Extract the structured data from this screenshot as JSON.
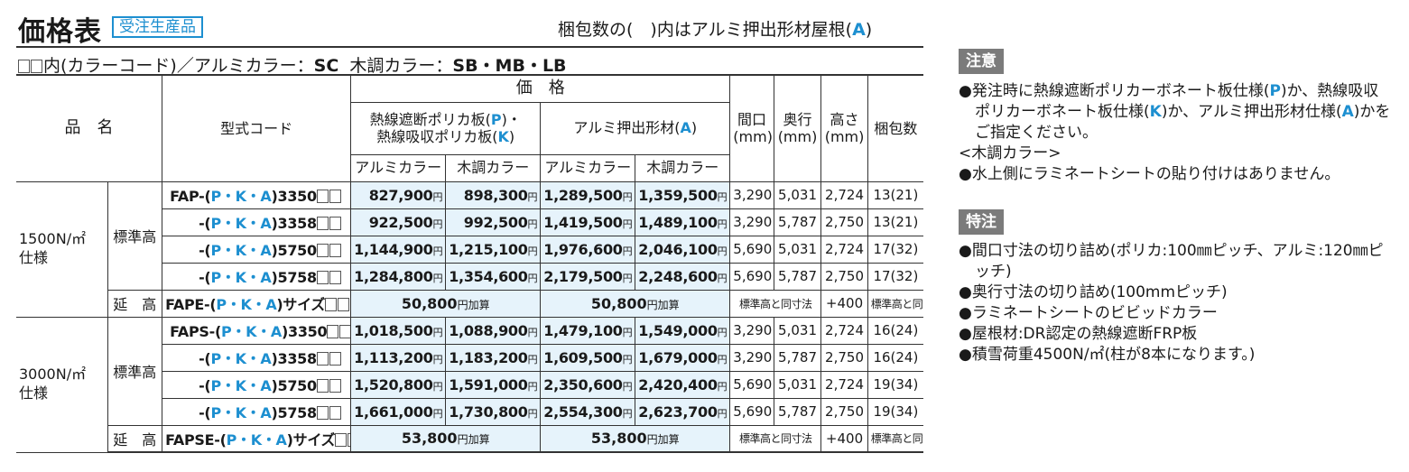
{
  "header": {
    "title": "価格表",
    "badge": "受注生産品",
    "pack_note_pre": "梱包数の(　)内はアルミ押出形材屋根(",
    "pack_note_letter": "A",
    "pack_note_post": ")",
    "color_note_pre": "内(カラーコード)／アルミカラー：",
    "color_alumi": "SC",
    "color_wood_label": "木調カラー：",
    "color_wood": "SB・MB・LB"
  },
  "table": {
    "headers": {
      "product_name": "品　名",
      "type_code": "型式コード",
      "price": "価　格",
      "poly_line1_pre": "熱線遮断ポリカ板(",
      "poly_line1_letter": "P",
      "poly_line1_post": ")・",
      "poly_line2_pre": "熱線吸収ポリカ板(",
      "poly_line2_letter": "K",
      "poly_line2_post": ")",
      "alumi_pre": "アルミ押出形材(",
      "alumi_letter": "A",
      "alumi_post": ")",
      "alumi_color": "アルミカラー",
      "wood_color": "木調カラー",
      "width": "間口",
      "depth": "奥行",
      "height": "高さ",
      "unit": "(mm)",
      "packages": "梱包数"
    },
    "groups": [
      {
        "load_line1": "1500N/㎡",
        "load_line2": "仕様",
        "standard_label": "標準高",
        "rows": [
          {
            "prefix": "FAP-(",
            "suffix": ")3350",
            "poly_alumi": "827,900",
            "poly_wood": "898,300",
            "al_alumi": "1,289,500",
            "al_wood": "1,359,500",
            "width": "3,290",
            "depth": "5,031",
            "height": "2,724",
            "packages": "13(21)"
          },
          {
            "prefix": "-(",
            "suffix": ")3358",
            "poly_alumi": "922,500",
            "poly_wood": "992,500",
            "al_alumi": "1,419,500",
            "al_wood": "1,489,100",
            "width": "3,290",
            "depth": "5,787",
            "height": "2,750",
            "packages": "13(21)"
          },
          {
            "prefix": "-(",
            "suffix": ")5750",
            "poly_alumi": "1,144,900",
            "poly_wood": "1,215,100",
            "al_alumi": "1,976,600",
            "al_wood": "2,046,100",
            "width": "5,690",
            "depth": "5,031",
            "height": "2,724",
            "packages": "17(32)"
          },
          {
            "prefix": "-(",
            "suffix": ")5758",
            "poly_alumi": "1,284,800",
            "poly_wood": "1,354,600",
            "al_alumi": "2,179,500",
            "al_wood": "2,248,600",
            "width": "5,690",
            "depth": "5,787",
            "height": "2,750",
            "packages": "17(32)"
          }
        ],
        "extension": {
          "label": "延　高",
          "prefix": "FAPE-(",
          "suffix": ")サイズ",
          "poly": "50,800",
          "alumi": "50,800",
          "width_depth": "標準高と同寸法",
          "height": "+400",
          "packages": "標準高と同数"
        }
      },
      {
        "load_line1": "3000N/㎡",
        "load_line2": "仕様",
        "standard_label": "標準高",
        "rows": [
          {
            "prefix": "FAPS-(",
            "suffix": ")3350",
            "poly_alumi": "1,018,500",
            "poly_wood": "1,088,900",
            "al_alumi": "1,479,100",
            "al_wood": "1,549,000",
            "width": "3,290",
            "depth": "5,031",
            "height": "2,724",
            "packages": "16(24)"
          },
          {
            "prefix": "-(",
            "suffix": ")3358",
            "poly_alumi": "1,113,200",
            "poly_wood": "1,183,200",
            "al_alumi": "1,609,500",
            "al_wood": "1,679,000",
            "width": "3,290",
            "depth": "5,787",
            "height": "2,750",
            "packages": "16(24)"
          },
          {
            "prefix": "-(",
            "suffix": ")5750",
            "poly_alumi": "1,520,800",
            "poly_wood": "1,591,000",
            "al_alumi": "2,350,600",
            "al_wood": "2,420,400",
            "width": "5,690",
            "depth": "5,031",
            "height": "2,724",
            "packages": "19(34)"
          },
          {
            "prefix": "-(",
            "suffix": ")5758",
            "poly_alumi": "1,661,000",
            "poly_wood": "1,730,800",
            "al_alumi": "2,554,300",
            "al_wood": "2,623,700",
            "width": "5,690",
            "depth": "5,787",
            "height": "2,750",
            "packages": "19(34)"
          }
        ],
        "extension": {
          "label": "延　高",
          "prefix": "FAPSE-(",
          "suffix": ")サイズ",
          "poly": "53,800",
          "alumi": "53,800",
          "width_depth": "標準高と同寸法",
          "height": "+400",
          "packages": "標準高と同数"
        }
      }
    ],
    "code_letters": "P・K・A",
    "yen": "円",
    "add_suffix": "円加算"
  },
  "notes": {
    "heading": "注意",
    "item1_a": "●発注時に熱線遮断ポリカーボネート板仕様(",
    "item1_p": "P",
    "item1_b": ")か、熱線吸収ポリカーボネート板仕様(",
    "item1_k": "K",
    "item1_c": ")か、アルミ押出形材仕様(",
    "item1_a_letter": "A",
    "item1_d": ")かをご指定ください。",
    "wood_label": "<木調カラー>",
    "item2": "●水上側にラミネートシートの貼り付けはありません。"
  },
  "special": {
    "heading": "特注",
    "items": [
      "●間口寸法の切り詰め(ポリカ:100㎜ピッチ、アルミ:120㎜ピッチ)",
      "●奥行寸法の切り詰め(100mmピッチ)",
      "●ラミネートシートのビビッドカラー",
      "●屋根材:DR認定の熱線遮断FRP板",
      "●積雪荷重4500N/㎡(柱が8本になります。)"
    ]
  }
}
